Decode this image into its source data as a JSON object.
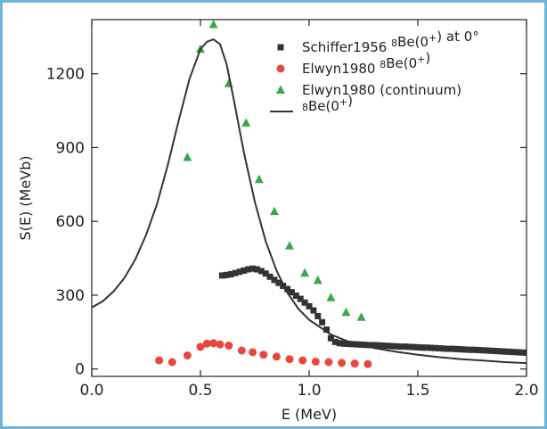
{
  "chart_data": {
    "type": "scatter",
    "xlabel": "E (MeV)",
    "ylabel": "S(E) (MeVb)",
    "xlim": [
      0.0,
      2.0
    ],
    "ylim": [
      -30,
      1420
    ],
    "xticks": [
      0.0,
      0.5,
      1.0,
      1.5,
      2.0
    ],
    "xtick_labels": [
      "0.0",
      "0.5",
      "1.0",
      "1.5",
      "2.0"
    ],
    "yticks": [
      0,
      300,
      600,
      900,
      1200
    ],
    "ytick_labels": [
      "0",
      "300",
      "600",
      "900",
      "1200"
    ],
    "legend_position": "top-right",
    "colors": {
      "frame": "#6fb3d8",
      "square": "#333333",
      "circle": "#e8483c",
      "triangle": "#3aa84a",
      "line": "#333333"
    },
    "legend": [
      {
        "kind": "square",
        "prefix": "Schiffer1956 ",
        "sup1": "8",
        "mid": "Be(0",
        "sup2": "+",
        "suffix": ") at 0°"
      },
      {
        "kind": "circle",
        "prefix": "Elwyn1980 ",
        "sup1": "8",
        "mid": "Be(0",
        "sup2": "+",
        "suffix": ")"
      },
      {
        "kind": "triangle",
        "prefix": "Elwyn1980 (continuum)",
        "sup1": "",
        "mid": "",
        "sup2": "",
        "suffix": ""
      },
      {
        "kind": "line",
        "prefix": "",
        "sup1": "8",
        "mid": "Be(0",
        "sup2": "+",
        "suffix": ")"
      }
    ],
    "series": [
      {
        "marker": "square",
        "x": [
          0.6,
          0.62,
          0.64,
          0.66,
          0.68,
          0.7,
          0.72,
          0.74,
          0.76,
          0.78,
          0.8,
          0.82,
          0.84,
          0.86,
          0.88,
          0.9,
          0.92,
          0.94,
          0.96,
          0.98,
          1.0,
          1.02,
          1.04,
          1.06,
          1.08,
          1.1,
          1.12,
          1.14,
          1.16,
          1.18,
          1.2,
          1.22,
          1.24,
          1.26,
          1.28,
          1.3,
          1.32,
          1.34,
          1.36,
          1.38,
          1.4,
          1.42,
          1.44,
          1.46,
          1.48,
          1.5,
          1.52,
          1.54,
          1.56,
          1.58,
          1.6,
          1.62,
          1.64,
          1.66,
          1.68,
          1.7,
          1.72,
          1.74,
          1.76,
          1.78,
          1.8,
          1.82,
          1.84,
          1.86,
          1.88,
          1.9,
          1.92,
          1.94,
          1.96,
          1.98,
          2.0
        ],
        "y": [
          380,
          382,
          385,
          390,
          395,
          400,
          405,
          408,
          405,
          398,
          388,
          375,
          362,
          350,
          338,
          325,
          312,
          298,
          285,
          270,
          255,
          238,
          215,
          190,
          160,
          125,
          110,
          105,
          103,
          102,
          101,
          100,
          99,
          98,
          97,
          97,
          96,
          95,
          94,
          93,
          92,
          91,
          91,
          90,
          89,
          88,
          87,
          87,
          86,
          85,
          84,
          83,
          82,
          82,
          81,
          80,
          79,
          78,
          78,
          77,
          76,
          75,
          74,
          73,
          72,
          71,
          70,
          69,
          68,
          67,
          66
        ]
      },
      {
        "marker": "circle",
        "x": [
          0.31,
          0.37,
          0.44,
          0.5,
          0.53,
          0.56,
          0.59,
          0.63,
          0.69,
          0.74,
          0.79,
          0.85,
          0.91,
          0.97,
          1.03,
          1.09,
          1.15,
          1.21,
          1.27
        ],
        "y": [
          35,
          28,
          55,
          90,
          103,
          105,
          100,
          95,
          75,
          68,
          58,
          50,
          40,
          35,
          30,
          28,
          25,
          22,
          20
        ]
      },
      {
        "marker": "triangle",
        "x": [
          0.44,
          0.5,
          0.56,
          0.63,
          0.71,
          0.77,
          0.84,
          0.91,
          0.98,
          1.04,
          1.1,
          1.17,
          1.24
        ],
        "y": [
          860,
          1300,
          1400,
          1160,
          1000,
          770,
          640,
          500,
          390,
          360,
          290,
          230,
          210
        ]
      },
      {
        "marker": "line",
        "x": [
          0.0,
          0.05,
          0.1,
          0.15,
          0.2,
          0.25,
          0.3,
          0.35,
          0.4,
          0.45,
          0.5,
          0.53,
          0.56,
          0.59,
          0.62,
          0.65,
          0.7,
          0.75,
          0.8,
          0.85,
          0.9,
          0.95,
          1.0,
          1.1,
          1.2,
          1.3,
          1.4,
          1.5,
          1.6,
          1.7,
          1.8,
          1.9,
          2.0
        ],
        "y": [
          250,
          275,
          315,
          370,
          445,
          545,
          670,
          830,
          1010,
          1180,
          1300,
          1330,
          1340,
          1320,
          1240,
          1110,
          880,
          680,
          520,
          400,
          310,
          245,
          200,
          140,
          105,
          85,
          70,
          58,
          48,
          40,
          34,
          28,
          24
        ]
      }
    ]
  }
}
